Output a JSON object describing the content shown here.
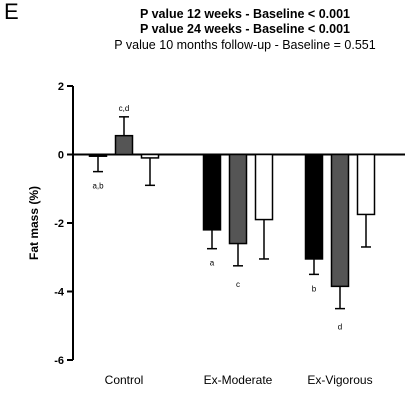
{
  "panel_label": "E",
  "chart_data": {
    "type": "bar",
    "title_lines": [
      "P value 12 weeks -  Baseline < 0.001",
      "P value 24 weeks -  Baseline < 0.001",
      "P value 10 months follow-up -  Baseline = 0.551"
    ],
    "xlabel": "",
    "ylabel": "Fat mass (%)",
    "ylim": [
      -6,
      2
    ],
    "yticks": [
      2,
      0,
      -2,
      -4,
      -6
    ],
    "categories": [
      "Control",
      "Ex-Moderate",
      "Ex-Vigorous"
    ],
    "series": [
      {
        "color": "#000000",
        "values": [
          -0.05,
          -2.2,
          -3.05
        ],
        "errors": [
          0.45,
          0.55,
          0.45
        ]
      },
      {
        "color": "#555555",
        "values": [
          0.55,
          -2.6,
          -3.85
        ],
        "errors": [
          0.55,
          0.65,
          0.65
        ]
      },
      {
        "color": "#ffffff",
        "values": [
          -0.1,
          -1.9,
          -1.75
        ],
        "errors": [
          0.8,
          1.15,
          0.95
        ]
      }
    ],
    "annotations": [
      {
        "category": 0,
        "series": 0,
        "text": "a,b"
      },
      {
        "category": 0,
        "series": 1,
        "text": "c,d"
      },
      {
        "category": 1,
        "series": 0,
        "text": "a"
      },
      {
        "category": 1,
        "series": 1,
        "text": "c"
      },
      {
        "category": 2,
        "series": 0,
        "text": "b"
      },
      {
        "category": 2,
        "series": 1,
        "text": "d"
      }
    ],
    "grid": false,
    "legend": "none"
  }
}
